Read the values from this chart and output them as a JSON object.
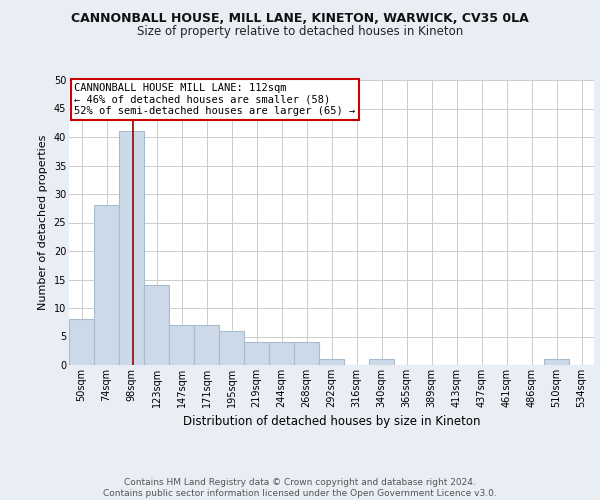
{
  "title1": "CANNONBALL HOUSE, MILL LANE, KINETON, WARWICK, CV35 0LA",
  "title2": "Size of property relative to detached houses in Kineton",
  "xlabel": "Distribution of detached houses by size in Kineton",
  "ylabel": "Number of detached properties",
  "bin_labels": [
    "50sqm",
    "74sqm",
    "98sqm",
    "123sqm",
    "147sqm",
    "171sqm",
    "195sqm",
    "219sqm",
    "244sqm",
    "268sqm",
    "292sqm",
    "316sqm",
    "340sqm",
    "365sqm",
    "389sqm",
    "413sqm",
    "437sqm",
    "461sqm",
    "486sqm",
    "510sqm",
    "534sqm"
  ],
  "bar_heights": [
    8,
    28,
    41,
    14,
    7,
    7,
    6,
    4,
    4,
    4,
    1,
    0,
    1,
    0,
    0,
    0,
    0,
    0,
    0,
    1,
    0
  ],
  "bar_color": "#ccd9e8",
  "bar_edgecolor": "#aabbcc",
  "bar_linewidth": 0.8,
  "vline_color": "#990000",
  "vline_linewidth": 1.2,
  "annotation_text": "CANNONBALL HOUSE MILL LANE: 112sqm\n← 46% of detached houses are smaller (58)\n52% of semi-detached houses are larger (65) →",
  "annotation_box_edgecolor": "#cc0000",
  "annotation_box_facecolor": "#ffffff",
  "ylim": [
    0,
    50
  ],
  "yticks": [
    0,
    5,
    10,
    15,
    20,
    25,
    30,
    35,
    40,
    45,
    50
  ],
  "footnote": "Contains HM Land Registry data © Crown copyright and database right 2024.\nContains public sector information licensed under the Open Government Licence v3.0.",
  "background_color": "#e8eef4",
  "plot_background_color": "#ffffff",
  "grid_color": "#cccccc",
  "title1_fontsize": 9.0,
  "title2_fontsize": 8.5,
  "xlabel_fontsize": 8.5,
  "ylabel_fontsize": 8.0,
  "tick_fontsize": 7.0,
  "annotation_fontsize": 7.5,
  "footnote_fontsize": 6.5
}
